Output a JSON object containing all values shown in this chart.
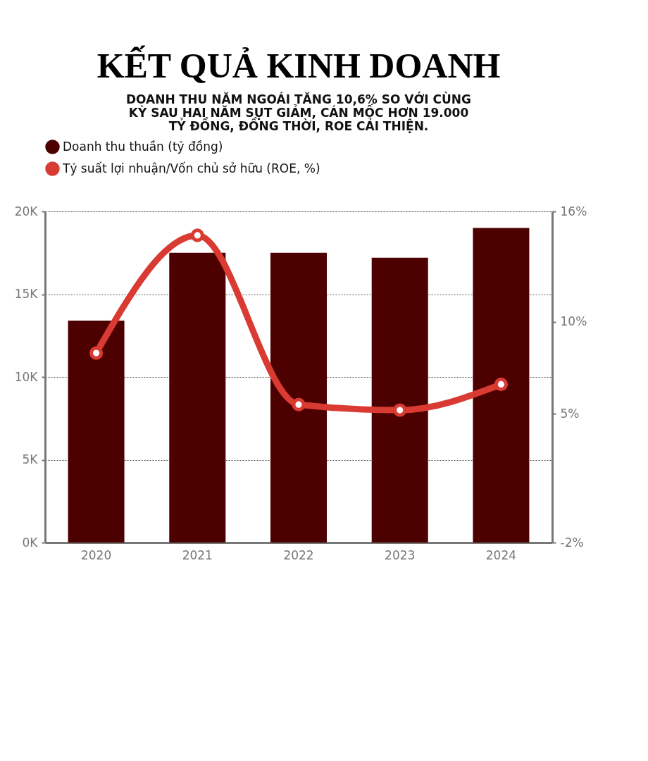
{
  "chart_data": {
    "type": "bar",
    "title": "KẾT QUẢ KINH DOANH",
    "subtitle": "DOANH THU NĂM NGOÁI TĂNG 10,6% SO VỚI CÙNG KỲ SAU HAI NĂM SỤT GIẢM, CÁN MỐC HƠN 19.000 TỶ ĐỒNG, ĐỒNG THỜI, ROE CẢI THIỆN.",
    "categories": [
      "2020",
      "2021",
      "2022",
      "2023",
      "2024"
    ],
    "series": [
      {
        "name": "Doanh thu thuần (tỷ đồng)",
        "color": "#4d0000",
        "values": [
          13400,
          17500,
          17500,
          17200,
          19000
        ]
      },
      {
        "name": "Tỷ suất lợi nhuận/Vốn chủ sở hữu (ROE, %)",
        "color": "#d93a32",
        "type": "line",
        "axis": "y2",
        "marker": "circle",
        "values": [
          8.3,
          14.7,
          5.5,
          5.2,
          6.6
        ]
      }
    ],
    "ylim": [
      0,
      20000
    ],
    "yticks": [
      {
        "value": 0,
        "label": "0K"
      },
      {
        "value": 5000,
        "label": "5K"
      },
      {
        "value": 10000,
        "label": "10K"
      },
      {
        "value": 15000,
        "label": "15K"
      },
      {
        "value": 20000,
        "label": "20K"
      }
    ],
    "y2lim": [
      -2,
      16
    ],
    "y2ticks": [
      {
        "value": -2,
        "label": "-2%"
      },
      {
        "value": 5,
        "label": "5%"
      },
      {
        "value": 10,
        "label": "10%"
      },
      {
        "value": 16,
        "label": "16%"
      }
    ],
    "grid": "y",
    "legend": "top",
    "line_style": "solid"
  }
}
